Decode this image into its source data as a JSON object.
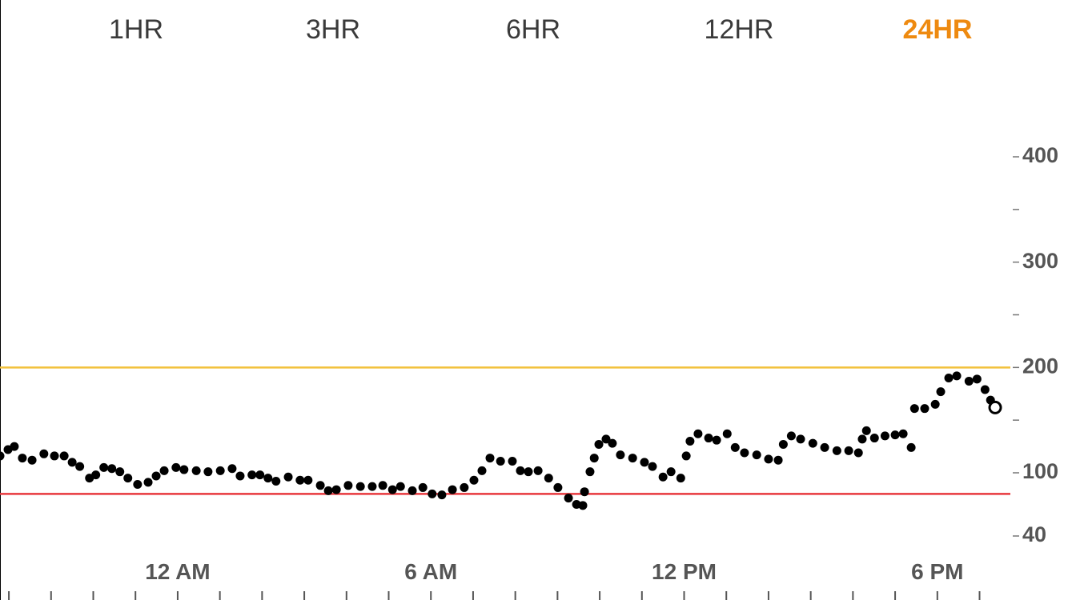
{
  "tabs": {
    "items": [
      "1HR",
      "3HR",
      "6HR",
      "12HR",
      "24HR"
    ],
    "selected": "24HR"
  },
  "chart_data": {
    "type": "scatter",
    "x": [
      -4.21,
      -4.02,
      -3.87,
      -3.68,
      -3.45,
      -3.17,
      -2.92,
      -2.69,
      -2.5,
      -2.32,
      -2.09,
      -1.94,
      -1.75,
      -1.56,
      -1.37,
      -1.18,
      -0.95,
      -0.7,
      -0.51,
      -0.32,
      -0.04,
      0.15,
      0.44,
      0.72,
      1.01,
      1.29,
      1.48,
      1.76,
      1.95,
      2.14,
      2.33,
      2.62,
      2.9,
      3.09,
      3.38,
      3.57,
      3.76,
      4.04,
      4.33,
      4.61,
      4.86,
      5.09,
      5.28,
      5.56,
      5.81,
      6.03,
      6.26,
      6.51,
      6.79,
      7.02,
      7.21,
      7.4,
      7.65,
      7.93,
      8.12,
      8.31,
      8.54,
      8.79,
      9.01,
      9.26,
      9.45,
      9.6,
      9.64,
      9.77,
      9.87,
      9.98,
      10.15,
      10.3,
      10.49,
      10.78,
      11.06,
      11.25,
      11.5,
      11.69,
      11.92,
      12.05,
      12.14,
      12.33,
      12.58,
      12.77,
      13.02,
      13.21,
      13.43,
      13.72,
      14.0,
      14.23,
      14.35,
      14.54,
      14.76,
      15.05,
      15.33,
      15.62,
      15.9,
      16.13,
      16.22,
      16.32,
      16.51,
      16.76,
      17.0,
      17.19,
      17.38,
      17.46,
      17.7,
      17.95,
      18.08,
      18.27,
      18.46,
      18.75,
      18.94,
      19.13,
      19.26,
      19.37
    ],
    "values": [
      116,
      122,
      125,
      114,
      112,
      118,
      116,
      116,
      110,
      106,
      95,
      98,
      105,
      104,
      101,
      95,
      89,
      91,
      97,
      102,
      105,
      103,
      102,
      101,
      102,
      104,
      97,
      98,
      98,
      95,
      92,
      96,
      93,
      93,
      88,
      83,
      84,
      88,
      87,
      87,
      88,
      84,
      87,
      83,
      86,
      80,
      79,
      84,
      86,
      93,
      102,
      114,
      111,
      111,
      102,
      101,
      102,
      95,
      86,
      76,
      70,
      69,
      82,
      101,
      114,
      127,
      132,
      128,
      117,
      114,
      110,
      106,
      96,
      101,
      95,
      116,
      130,
      137,
      133,
      131,
      137,
      124,
      119,
      117,
      113,
      112,
      127,
      135,
      132,
      128,
      124,
      121,
      121,
      119,
      132,
      140,
      133,
      135,
      136,
      137,
      124,
      161,
      161,
      165,
      177,
      190,
      192,
      187,
      189,
      179,
      169,
      162
    ],
    "color": "#000000",
    "xlim": [
      -4.21,
      19.73
    ],
    "xticks": [
      {
        "value": 0,
        "label": "12 AM"
      },
      {
        "value": 6,
        "label": "6 AM"
      },
      {
        "value": 12,
        "label": "12 PM"
      },
      {
        "value": 18,
        "label": "6 PM"
      }
    ],
    "minor_xticks": [
      -4,
      -3,
      -2,
      -1,
      0,
      1,
      2,
      3,
      4,
      5,
      6,
      7,
      8,
      9,
      10,
      11,
      12,
      13,
      14,
      15,
      16,
      17,
      18,
      19
    ],
    "ylim": [
      40,
      400
    ],
    "yticks": [
      40,
      100,
      200,
      300,
      400
    ],
    "minor_yticks": [
      150,
      250,
      350
    ],
    "high_threshold": 200,
    "high_color": "#f2c13c",
    "low_threshold": 80,
    "low_color": "#e8383d"
  }
}
